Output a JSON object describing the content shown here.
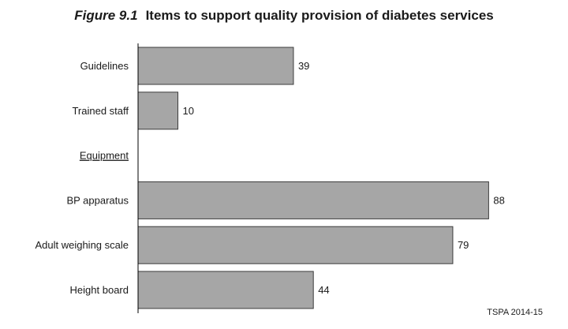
{
  "title": {
    "figure": "Figure 9.1",
    "text": "Items to support quality provision of diabetes services"
  },
  "source": "TSPA 2014-15",
  "colors": {
    "bar": "#a6a6a6",
    "bar_stroke": "#3c3c3c",
    "axis": "#000000"
  },
  "chart_data": {
    "type": "bar",
    "orientation": "horizontal",
    "categories": [
      "Guidelines",
      "Trained staff",
      "Equipment",
      "BP apparatus",
      "Adult weighing scale",
      "Height board"
    ],
    "values": [
      39,
      10,
      null,
      88,
      79,
      44
    ],
    "group_headers": [
      "Equipment"
    ],
    "xlim": [
      0,
      90
    ],
    "grid": false,
    "data_labels": true
  }
}
